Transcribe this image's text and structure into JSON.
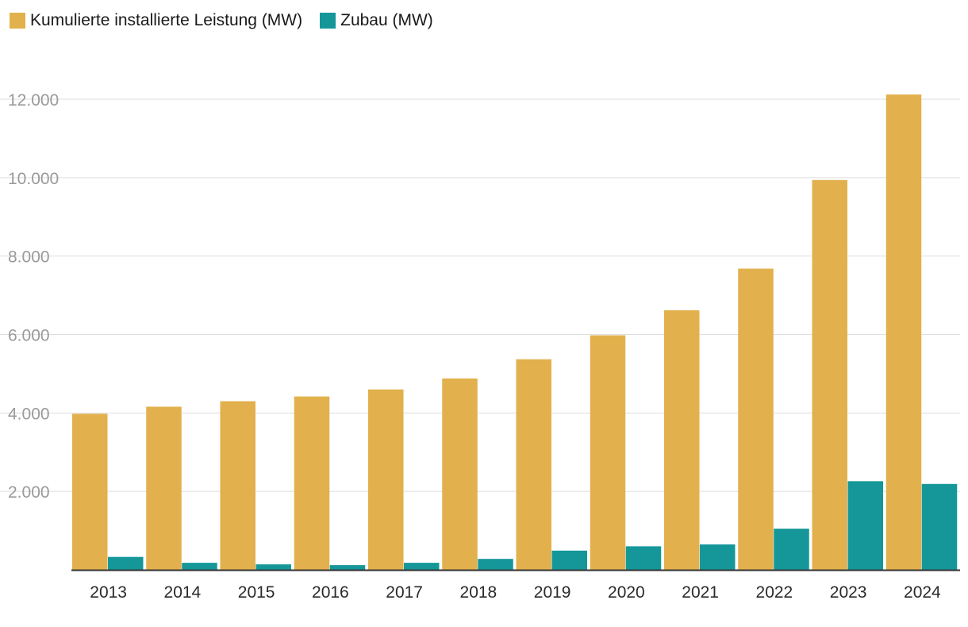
{
  "chart_data": {
    "type": "bar",
    "categories": [
      "2013",
      "2014",
      "2015",
      "2016",
      "2017",
      "2018",
      "2019",
      "2020",
      "2021",
      "2022",
      "2023",
      "2024"
    ],
    "series": [
      {
        "name": "Kumulierte installierte Leistung (MW)",
        "color": "#E2B04D",
        "values": [
          3980,
          4160,
          4300,
          4420,
          4600,
          4880,
          5370,
          5980,
          6620,
          7680,
          9940,
          12120
        ]
      },
      {
        "name": "Zubau (MW)",
        "color": "#15979A",
        "values": [
          330,
          180,
          140,
          120,
          180,
          280,
          490,
          600,
          650,
          1050,
          2260,
          2190
        ]
      }
    ],
    "ylim": [
      0,
      12600
    ],
    "yticks": [
      2000,
      4000,
      6000,
      8000,
      10000,
      12000
    ],
    "ytick_labels": [
      "2.000",
      "4.000",
      "6.000",
      "8.000",
      "10.000",
      "12.000"
    ],
    "title": "",
    "xlabel": "",
    "ylabel": "",
    "grid": true,
    "legend_position": "top-left"
  }
}
